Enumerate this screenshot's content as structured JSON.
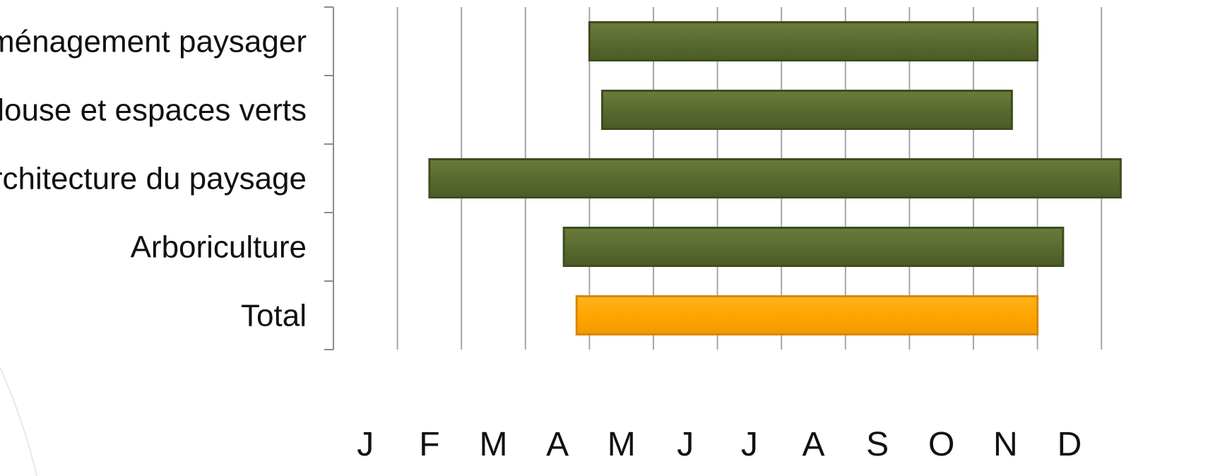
{
  "colors": {
    "bar": "#5a6b30",
    "bar_edge": "#3f4c1f",
    "highlight": "#ffa500",
    "highlight_edge": "#d98600",
    "grid": "#a6a6a6",
    "axis": "#8c8c8c"
  },
  "chart_data": {
    "type": "bar",
    "orientation": "horizontal",
    "style": "floating-range",
    "categories": [
      "Aménagement paysager",
      "Pelouse et espaces verts",
      "Architecture du paysage",
      "Arboriculture",
      "Total"
    ],
    "series": [
      {
        "start": [
          4.0,
          4.2,
          1.5,
          3.6,
          3.8
        ],
        "end": [
          11.0,
          10.6,
          12.3,
          11.4,
          11.0
        ]
      }
    ],
    "highlight_index": 4,
    "x_ticks": [
      "J",
      "F",
      "M",
      "A",
      "M",
      "J",
      "J",
      "A",
      "S",
      "O",
      "N",
      "D"
    ],
    "xlim": [
      0,
      12
    ],
    "grid": true,
    "legend": "none"
  }
}
